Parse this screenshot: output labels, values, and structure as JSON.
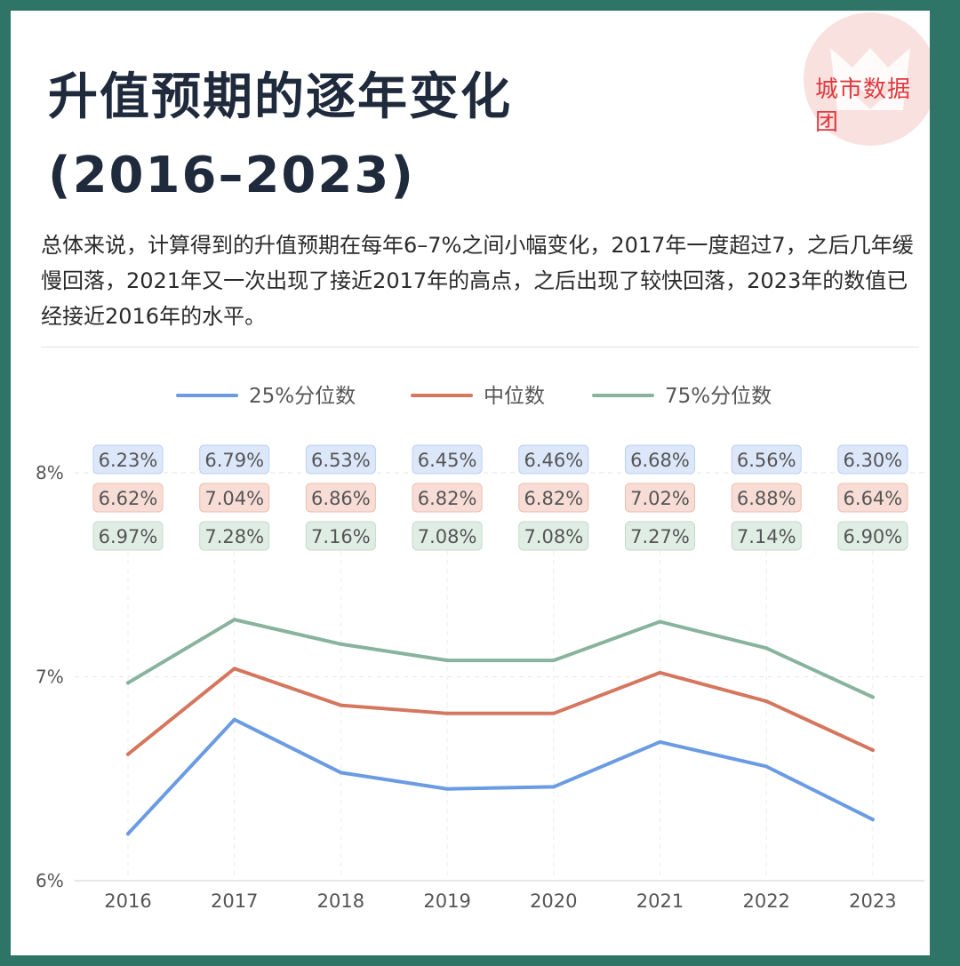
{
  "title_lines": [
    "升值预期的逐年变化",
    "(2016–2023)"
  ],
  "description": "总体来说，计算得到的升值预期在每年6–7%之间小幅变化，2017年一度超过7，之后几年缓慢回落，2021年又一次出现了接近2017年的高点，之后出现了较快回落，2023年的数值已经接近2016年的水平。",
  "brand": "城市数据团",
  "colors": {
    "p25": "#6a9be3",
    "median": "#d5775e",
    "p75": "#88b39c"
  },
  "chart_data": {
    "type": "line",
    "categories": [
      "2016",
      "2017",
      "2018",
      "2019",
      "2020",
      "2021",
      "2022",
      "2023"
    ],
    "series": [
      {
        "name": "25%分位数",
        "key": "p25",
        "values": [
          6.23,
          6.79,
          6.53,
          6.45,
          6.46,
          6.68,
          6.56,
          6.3
        ],
        "labels": [
          "6.23%",
          "6.79%",
          "6.53%",
          "6.45%",
          "6.46%",
          "6.68%",
          "6.56%",
          "6.30%"
        ]
      },
      {
        "name": "中位数",
        "key": "median",
        "values": [
          6.62,
          7.04,
          6.86,
          6.82,
          6.82,
          7.02,
          6.88,
          6.64
        ],
        "labels": [
          "6.62%",
          "7.04%",
          "6.86%",
          "6.82%",
          "6.82%",
          "7.02%",
          "6.88%",
          "6.64%"
        ]
      },
      {
        "name": "75%分位数",
        "key": "p75",
        "values": [
          6.97,
          7.28,
          7.16,
          7.08,
          7.08,
          7.27,
          7.14,
          6.9
        ],
        "labels": [
          "6.97%",
          "7.28%",
          "7.16%",
          "7.08%",
          "7.08%",
          "7.27%",
          "7.14%",
          "6.90%"
        ]
      }
    ],
    "ylim": [
      6,
      8
    ],
    "yticks": [
      6,
      7,
      8
    ],
    "ytick_labels": [
      "6%",
      "7%",
      "8%"
    ],
    "legend_position": "top-center",
    "grid": true
  }
}
